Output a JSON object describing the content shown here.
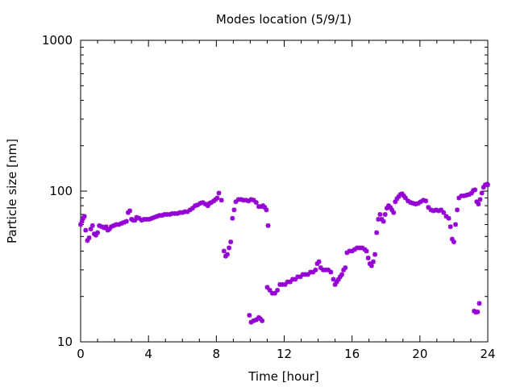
{
  "chart_data": {
    "type": "scatter",
    "title": "Modes location (5/9/1)",
    "xlabel": "Time [hour]",
    "ylabel": "Particle size [nm]",
    "xlim": [
      0,
      24
    ],
    "ylim": [
      10,
      1000
    ],
    "yscale": "log",
    "xticks": [
      0,
      4,
      8,
      12,
      16,
      20,
      24
    ],
    "yticks": [
      10,
      100,
      1000
    ],
    "grid": false,
    "legend": "none",
    "marker_color": "#9400d3",
    "series": [
      {
        "points": [
          [
            0.0,
            60
          ],
          [
            0.08,
            63
          ],
          [
            0.15,
            66
          ],
          [
            0.22,
            68
          ],
          [
            0.3,
            55
          ],
          [
            0.4,
            47
          ],
          [
            0.5,
            49
          ],
          [
            0.6,
            56
          ],
          [
            0.7,
            59
          ],
          [
            0.8,
            52
          ],
          [
            0.9,
            51
          ],
          [
            1.0,
            53
          ],
          [
            1.1,
            59
          ],
          [
            1.25,
            58
          ],
          [
            1.4,
            57
          ],
          [
            1.5,
            58
          ],
          [
            1.6,
            55
          ],
          [
            1.7,
            56
          ],
          [
            1.8,
            58
          ],
          [
            1.95,
            59
          ],
          [
            2.1,
            60
          ],
          [
            2.25,
            60
          ],
          [
            2.4,
            61
          ],
          [
            2.55,
            62
          ],
          [
            2.7,
            63
          ],
          [
            2.8,
            72
          ],
          [
            2.9,
            74
          ],
          [
            3.0,
            65
          ],
          [
            3.1,
            64
          ],
          [
            3.2,
            64
          ],
          [
            3.3,
            67
          ],
          [
            3.45,
            66
          ],
          [
            3.6,
            64
          ],
          [
            3.75,
            65
          ],
          [
            3.9,
            65
          ],
          [
            4.05,
            65
          ],
          [
            4.2,
            66
          ],
          [
            4.35,
            67
          ],
          [
            4.5,
            68
          ],
          [
            4.65,
            69
          ],
          [
            4.8,
            69
          ],
          [
            4.95,
            70
          ],
          [
            5.1,
            70
          ],
          [
            5.25,
            70
          ],
          [
            5.4,
            71
          ],
          [
            5.55,
            71
          ],
          [
            5.7,
            71
          ],
          [
            5.85,
            72
          ],
          [
            6.0,
            72
          ],
          [
            6.15,
            73
          ],
          [
            6.3,
            73
          ],
          [
            6.45,
            75
          ],
          [
            6.6,
            77
          ],
          [
            6.75,
            80
          ],
          [
            6.9,
            81
          ],
          [
            7.05,
            83
          ],
          [
            7.2,
            84
          ],
          [
            7.35,
            82
          ],
          [
            7.5,
            80
          ],
          [
            7.6,
            83
          ],
          [
            7.7,
            84
          ],
          [
            7.85,
            86
          ],
          [
            7.95,
            88
          ],
          [
            8.05,
            90
          ],
          [
            8.15,
            97
          ],
          [
            8.3,
            87
          ],
          [
            8.45,
            40
          ],
          [
            8.55,
            37
          ],
          [
            8.65,
            38
          ],
          [
            8.75,
            42
          ],
          [
            8.85,
            46
          ],
          [
            8.95,
            66
          ],
          [
            9.05,
            75
          ],
          [
            9.15,
            85
          ],
          [
            9.3,
            88
          ],
          [
            9.45,
            88
          ],
          [
            9.6,
            87
          ],
          [
            9.75,
            87
          ],
          [
            9.9,
            86
          ],
          [
            10.05,
            88
          ],
          [
            10.2,
            87
          ],
          [
            10.35,
            84
          ],
          [
            10.5,
            79
          ],
          [
            10.65,
            79
          ],
          [
            10.75,
            80
          ],
          [
            10.85,
            78
          ],
          [
            10.95,
            75
          ],
          [
            11.05,
            59
          ],
          [
            9.95,
            15
          ],
          [
            10.05,
            13.5
          ],
          [
            10.2,
            13.8
          ],
          [
            10.35,
            14
          ],
          [
            10.5,
            14.5
          ],
          [
            10.6,
            14.2
          ],
          [
            10.7,
            13.8
          ],
          [
            11.0,
            23
          ],
          [
            11.15,
            22
          ],
          [
            11.3,
            21
          ],
          [
            11.45,
            21
          ],
          [
            11.6,
            22
          ],
          [
            11.75,
            24
          ],
          [
            11.9,
            24
          ],
          [
            12.05,
            24
          ],
          [
            12.2,
            25
          ],
          [
            12.35,
            25
          ],
          [
            12.5,
            26
          ],
          [
            12.65,
            26
          ],
          [
            12.8,
            27
          ],
          [
            12.95,
            27
          ],
          [
            13.1,
            28
          ],
          [
            13.25,
            28
          ],
          [
            13.4,
            28
          ],
          [
            13.55,
            29
          ],
          [
            13.7,
            29
          ],
          [
            13.85,
            30
          ],
          [
            13.95,
            33
          ],
          [
            14.05,
            34
          ],
          [
            14.15,
            31
          ],
          [
            14.3,
            30
          ],
          [
            14.45,
            30
          ],
          [
            14.6,
            30
          ],
          [
            14.75,
            29
          ],
          [
            14.9,
            26
          ],
          [
            15.0,
            24
          ],
          [
            15.1,
            25
          ],
          [
            15.2,
            26
          ],
          [
            15.3,
            27
          ],
          [
            15.4,
            28
          ],
          [
            15.5,
            30
          ],
          [
            15.6,
            31
          ],
          [
            15.7,
            39
          ],
          [
            15.85,
            40
          ],
          [
            16.0,
            40
          ],
          [
            16.15,
            41
          ],
          [
            16.3,
            42
          ],
          [
            16.45,
            42
          ],
          [
            16.6,
            42
          ],
          [
            16.75,
            41
          ],
          [
            16.85,
            40
          ],
          [
            16.95,
            36
          ],
          [
            17.05,
            33
          ],
          [
            17.15,
            32
          ],
          [
            17.25,
            34
          ],
          [
            17.35,
            38
          ],
          [
            17.45,
            53
          ],
          [
            17.55,
            65
          ],
          [
            17.65,
            70
          ],
          [
            17.75,
            65
          ],
          [
            17.85,
            63
          ],
          [
            17.95,
            70
          ],
          [
            18.05,
            77
          ],
          [
            18.15,
            80
          ],
          [
            18.25,
            78
          ],
          [
            18.35,
            75
          ],
          [
            18.45,
            72
          ],
          [
            18.55,
            85
          ],
          [
            18.65,
            89
          ],
          [
            18.75,
            92
          ],
          [
            18.85,
            95
          ],
          [
            18.95,
            96
          ],
          [
            19.05,
            93
          ],
          [
            19.15,
            90
          ],
          [
            19.3,
            86
          ],
          [
            19.45,
            84
          ],
          [
            19.6,
            83
          ],
          [
            19.75,
            82
          ],
          [
            19.9,
            83
          ],
          [
            20.05,
            85
          ],
          [
            20.2,
            87
          ],
          [
            20.35,
            86
          ],
          [
            20.5,
            78
          ],
          [
            20.65,
            75
          ],
          [
            20.8,
            74
          ],
          [
            20.95,
            75
          ],
          [
            21.1,
            74
          ],
          [
            21.25,
            75
          ],
          [
            21.4,
            72
          ],
          [
            21.55,
            68
          ],
          [
            21.7,
            66
          ],
          [
            21.8,
            58
          ],
          [
            21.9,
            48
          ],
          [
            22.0,
            46
          ],
          [
            22.1,
            60
          ],
          [
            22.2,
            75
          ],
          [
            22.3,
            90
          ],
          [
            22.45,
            93
          ],
          [
            22.6,
            93
          ],
          [
            22.75,
            94
          ],
          [
            22.9,
            95
          ],
          [
            23.05,
            97
          ],
          [
            23.15,
            101
          ],
          [
            23.25,
            102
          ],
          [
            23.35,
            85
          ],
          [
            23.45,
            82
          ],
          [
            23.55,
            88
          ],
          [
            23.65,
            97
          ],
          [
            23.75,
            106
          ],
          [
            23.85,
            110
          ],
          [
            23.95,
            111
          ],
          [
            24.0,
            110
          ],
          [
            23.2,
            16
          ],
          [
            23.3,
            15.7
          ],
          [
            23.4,
            15.8
          ],
          [
            23.5,
            18
          ]
        ]
      }
    ]
  }
}
